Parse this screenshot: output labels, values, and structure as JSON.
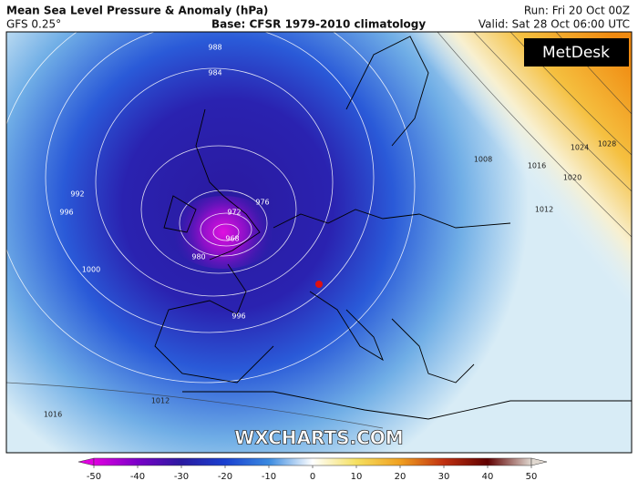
{
  "header": {
    "title": "Mean Sea Level Pressure & Anomaly (hPa)",
    "model": "GFS 0.25°",
    "base": "Base: CFSR 1979-2010 climatology",
    "run": "Run: Fri 20 Oct 00Z",
    "valid": "Valid: Sat 28 Oct 06:00 UTC"
  },
  "map": {
    "logo": "MetDesk",
    "watermark": "WXCHARTS.COM",
    "isobar_labels": [
      "988",
      "984",
      "992",
      "996",
      "1000",
      "976",
      "972",
      "968",
      "980",
      "996",
      "1008",
      "1012",
      "1016",
      "1020",
      "1024",
      "1028",
      "1012",
      "1016"
    ]
  },
  "colorbar": {
    "ticks": [
      -50,
      -40,
      -30,
      -20,
      -10,
      0,
      10,
      20,
      30,
      40,
      50
    ]
  }
}
